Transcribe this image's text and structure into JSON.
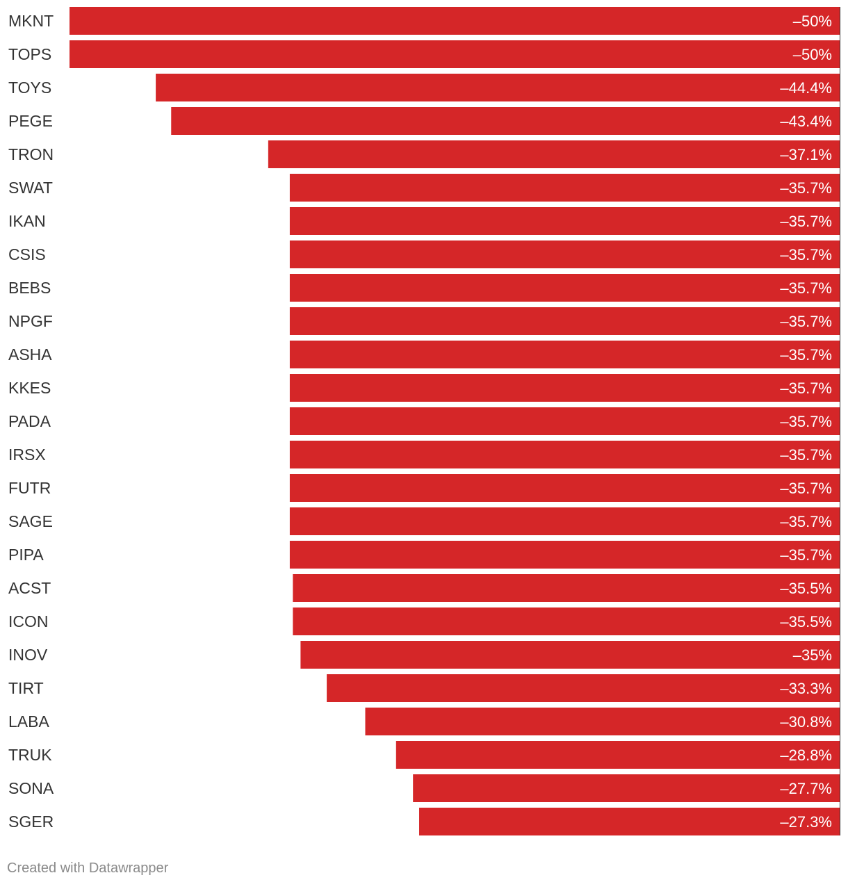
{
  "chart_data": {
    "type": "bar",
    "orientation": "horizontal",
    "categories": [
      "MKNT",
      "TOPS",
      "TOYS",
      "PEGE",
      "TRON",
      "SWAT",
      "IKAN",
      "CSIS",
      "BEBS",
      "NPGF",
      "ASHA",
      "KKES",
      "PADA",
      "IRSX",
      "FUTR",
      "SAGE",
      "PIPA",
      "ACST",
      "ICON",
      "INOV",
      "TIRT",
      "LABA",
      "TRUK",
      "SONA",
      "SGER"
    ],
    "values": [
      -50,
      -50,
      -44.4,
      -43.4,
      -37.1,
      -35.7,
      -35.7,
      -35.7,
      -35.7,
      -35.7,
      -35.7,
      -35.7,
      -35.7,
      -35.7,
      -35.7,
      -35.7,
      -35.7,
      -35.5,
      -35.5,
      -35,
      -33.3,
      -30.8,
      -28.8,
      -27.7,
      -27.3
    ],
    "labels": [
      "–50%",
      "–50%",
      "–44.4%",
      "–43.4%",
      "–37.1%",
      "–35.7%",
      "–35.7%",
      "–35.7%",
      "–35.7%",
      "–35.7%",
      "–35.7%",
      "–35.7%",
      "–35.7%",
      "–35.7%",
      "–35.7%",
      "–35.7%",
      "–35.7%",
      "–35.5%",
      "–35.5%",
      "–35%",
      "–33.3%",
      "–30.8%",
      "–28.8%",
      "–27.7%",
      "–27.3%"
    ],
    "xlim": [
      -50,
      0
    ],
    "bar_color": "#d52628",
    "label_color": "#ffffff",
    "category_color": "#333333",
    "grid": false,
    "title": "",
    "xlabel": "",
    "ylabel": ""
  },
  "footer": {
    "credit": "Created with Datawrapper"
  }
}
